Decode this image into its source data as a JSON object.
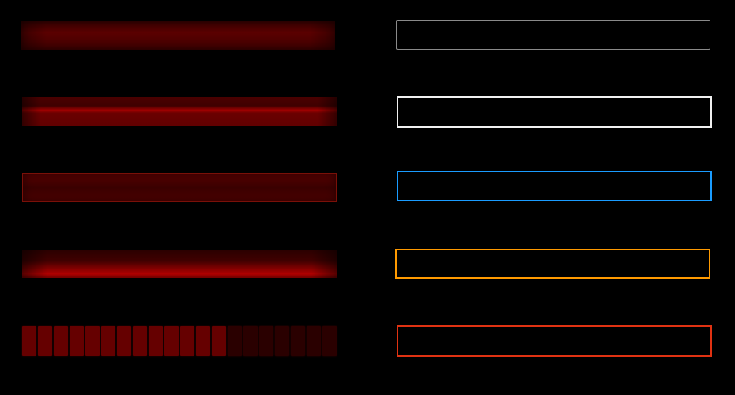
{
  "progress_bars": [
    {
      "style": "flat-red"
    },
    {
      "style": "glossy-red-top-highlight"
    },
    {
      "style": "red-bordered"
    },
    {
      "style": "glossy-red-bottom-glow"
    },
    {
      "style": "segmented",
      "segments_total": 20,
      "segments_lit": 13,
      "percent": 65
    }
  ],
  "input_boxes": [
    {
      "border_color": "#8a8a8a"
    },
    {
      "border_color": "#f0f0f0"
    },
    {
      "border_color": "#1a9cff"
    },
    {
      "border_color": "#ff9a00"
    },
    {
      "border_color": "#e03212"
    }
  ]
}
